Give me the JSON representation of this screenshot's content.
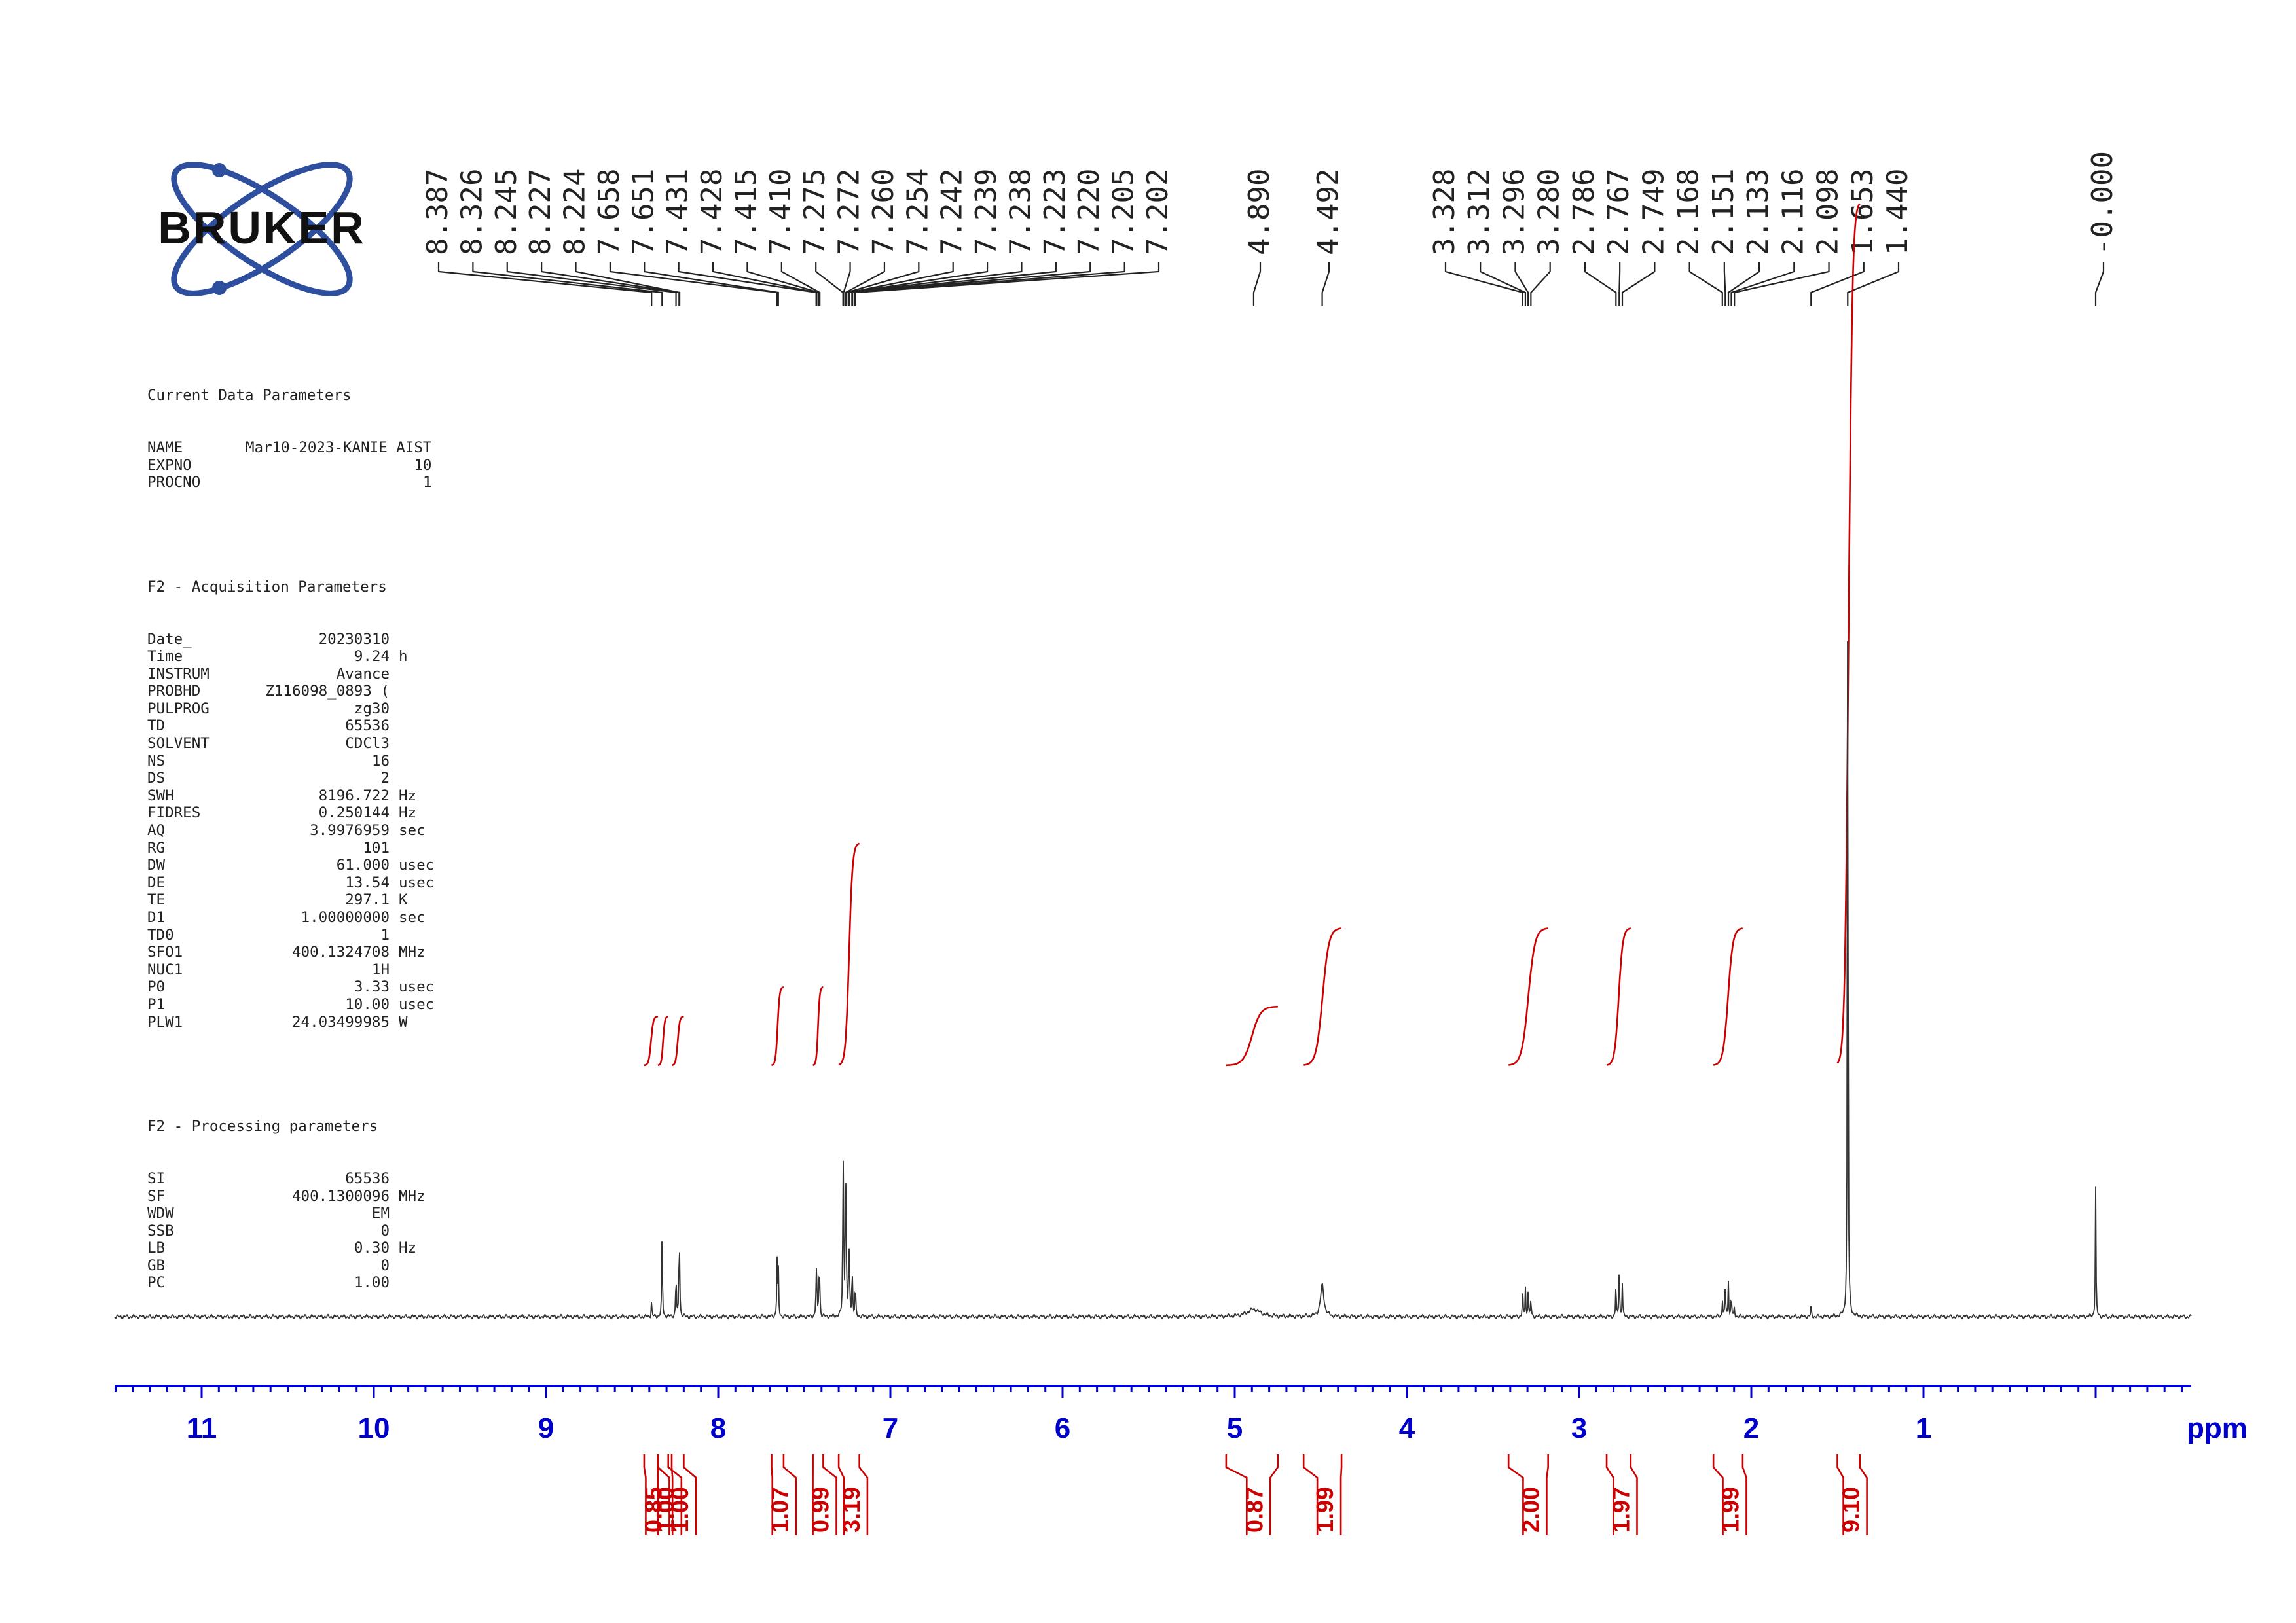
{
  "logo": {
    "text": "BRUKER",
    "ring_color": "#2d4f9e",
    "text_color": "#111111"
  },
  "parameters": {
    "current": {
      "heading": "Current Data Parameters",
      "rows": [
        {
          "key": "NAME",
          "value": "Mar10-2023-KANIE AIST",
          "unit": ""
        },
        {
          "key": "EXPNO",
          "value": "10",
          "unit": ""
        },
        {
          "key": "PROCNO",
          "value": "1",
          "unit": ""
        }
      ]
    },
    "acquisition": {
      "heading": "F2 - Acquisition Parameters",
      "rows": [
        {
          "key": "Date_",
          "value": "20230310",
          "unit": ""
        },
        {
          "key": "Time",
          "value": "9.24",
          "unit": "h"
        },
        {
          "key": "INSTRUM",
          "value": "Avance",
          "unit": ""
        },
        {
          "key": "PROBHD",
          "value": "Z116098_0893 (",
          "unit": ""
        },
        {
          "key": "PULPROG",
          "value": "zg30",
          "unit": ""
        },
        {
          "key": "TD",
          "value": "65536",
          "unit": ""
        },
        {
          "key": "SOLVENT",
          "value": "CDCl3",
          "unit": ""
        },
        {
          "key": "NS",
          "value": "16",
          "unit": ""
        },
        {
          "key": "DS",
          "value": "2",
          "unit": ""
        },
        {
          "key": "SWH",
          "value": "8196.722",
          "unit": "Hz"
        },
        {
          "key": "FIDRES",
          "value": "0.250144",
          "unit": "Hz"
        },
        {
          "key": "AQ",
          "value": "3.9976959",
          "unit": "sec"
        },
        {
          "key": "RG",
          "value": "101",
          "unit": ""
        },
        {
          "key": "DW",
          "value": "61.000",
          "unit": "usec"
        },
        {
          "key": "DE",
          "value": "13.54",
          "unit": "usec"
        },
        {
          "key": "TE",
          "value": "297.1",
          "unit": "K"
        },
        {
          "key": "D1",
          "value": "1.00000000",
          "unit": "sec"
        },
        {
          "key": "TD0",
          "value": "1",
          "unit": ""
        },
        {
          "key": "SFO1",
          "value": "400.1324708",
          "unit": "MHz"
        },
        {
          "key": "NUC1",
          "value": "1H",
          "unit": ""
        },
        {
          "key": "P0",
          "value": "3.33",
          "unit": "usec"
        },
        {
          "key": "P1",
          "value": "10.00",
          "unit": "usec"
        },
        {
          "key": "PLW1",
          "value": "24.03499985",
          "unit": "W"
        }
      ]
    },
    "processing": {
      "heading": "F2 - Processing parameters",
      "rows": [
        {
          "key": "SI",
          "value": "65536",
          "unit": ""
        },
        {
          "key": "SF",
          "value": "400.1300096",
          "unit": "MHz"
        },
        {
          "key": "WDW",
          "value": "EM",
          "unit": ""
        },
        {
          "key": "SSB",
          "value": "0",
          "unit": ""
        },
        {
          "key": "LB",
          "value": "0.30",
          "unit": "Hz"
        },
        {
          "key": "GB",
          "value": "0",
          "unit": ""
        },
        {
          "key": "PC",
          "value": "1.00",
          "unit": ""
        }
      ]
    }
  },
  "chart_data": {
    "type": "line",
    "title": "",
    "xlabel": "ppm",
    "ylabel": "",
    "x_reversed": true,
    "xlim": [
      11.5,
      -0.5
    ],
    "x_ticks": [
      "11",
      "10",
      "9",
      "8",
      "7",
      "6",
      "5",
      "4",
      "3",
      "2",
      "1"
    ],
    "y_relative_intensity": true,
    "colors": {
      "spectrum": "#333333",
      "axis": "#0000cc",
      "integral": "#cc0000",
      "peak_labels": "#222222"
    },
    "peak_labels": [
      "8.387",
      "8.326",
      "8.245",
      "8.227",
      "8.224",
      "7.658",
      "7.651",
      "7.431",
      "7.428",
      "7.415",
      "7.410",
      "7.275",
      "7.272",
      "7.260",
      "7.254",
      "7.242",
      "7.239",
      "7.238",
      "7.223",
      "7.220",
      "7.205",
      "7.202",
      "4.890",
      "4.492",
      "3.328",
      "3.312",
      "3.296",
      "3.280",
      "2.786",
      "2.767",
      "2.749",
      "2.168",
      "2.151",
      "2.133",
      "2.116",
      "2.098",
      "1.653",
      "1.440",
      "-0.000"
    ],
    "peaks": [
      {
        "ppm": 8.387,
        "height": 0.02
      },
      {
        "ppm": 8.326,
        "height": 0.106
      },
      {
        "ppm": 8.245,
        "height": 0.058
      },
      {
        "ppm": 8.227,
        "height": 0.058
      },
      {
        "ppm": 8.224,
        "height": 0.056
      },
      {
        "ppm": 7.658,
        "height": 0.067
      },
      {
        "ppm": 7.651,
        "height": 0.062
      },
      {
        "ppm": 7.431,
        "height": 0.041
      },
      {
        "ppm": 7.428,
        "height": 0.04
      },
      {
        "ppm": 7.415,
        "height": 0.041
      },
      {
        "ppm": 7.41,
        "height": 0.04
      },
      {
        "ppm": 7.275,
        "height": 0.17
      },
      {
        "ppm": 7.272,
        "height": 0.085
      },
      {
        "ppm": 7.26,
        "height": 0.21
      },
      {
        "ppm": 7.254,
        "height": 0.03
      },
      {
        "ppm": 7.242,
        "height": 0.038
      },
      {
        "ppm": 7.239,
        "height": 0.036
      },
      {
        "ppm": 7.238,
        "height": 0.036
      },
      {
        "ppm": 7.223,
        "height": 0.034
      },
      {
        "ppm": 7.22,
        "height": 0.032
      },
      {
        "ppm": 7.205,
        "height": 0.02
      },
      {
        "ppm": 7.202,
        "height": 0.018
      },
      {
        "ppm": 4.89,
        "height": 0.009
      },
      {
        "ppm": 4.492,
        "height": 0.038
      },
      {
        "ppm": 3.328,
        "height": 0.03
      },
      {
        "ppm": 3.312,
        "height": 0.036
      },
      {
        "ppm": 3.296,
        "height": 0.033
      },
      {
        "ppm": 3.28,
        "height": 0.024
      },
      {
        "ppm": 2.786,
        "height": 0.04
      },
      {
        "ppm": 2.767,
        "height": 0.063
      },
      {
        "ppm": 2.749,
        "height": 0.04
      },
      {
        "ppm": 2.168,
        "height": 0.022
      },
      {
        "ppm": 2.151,
        "height": 0.04
      },
      {
        "ppm": 2.133,
        "height": 0.044
      },
      {
        "ppm": 2.116,
        "height": 0.028
      },
      {
        "ppm": 2.098,
        "height": 0.012
      },
      {
        "ppm": 1.653,
        "height": 0.013
      },
      {
        "ppm": 1.44,
        "height": 1.0
      },
      {
        "ppm": 0.0,
        "height": 0.156
      }
    ],
    "integrals": [
      {
        "from": 8.43,
        "to": 8.35,
        "value": "0.85"
      },
      {
        "from": 8.35,
        "to": 8.29,
        "value": "1.00"
      },
      {
        "from": 8.27,
        "to": 8.2,
        "value": "1.00"
      },
      {
        "from": 7.69,
        "to": 7.62,
        "value": "1.07"
      },
      {
        "from": 7.45,
        "to": 7.39,
        "value": "0.99"
      },
      {
        "from": 7.3,
        "to": 7.18,
        "value": "3.19"
      },
      {
        "from": 5.05,
        "to": 4.75,
        "value": "0.87"
      },
      {
        "from": 4.6,
        "to": 4.38,
        "value": "1.99"
      },
      {
        "from": 3.41,
        "to": 3.18,
        "value": "2.00"
      },
      {
        "from": 2.84,
        "to": 2.7,
        "value": "1.97"
      },
      {
        "from": 2.22,
        "to": 2.05,
        "value": "1.99"
      },
      {
        "from": 1.5,
        "to": 1.37,
        "value": "9.10"
      }
    ]
  }
}
